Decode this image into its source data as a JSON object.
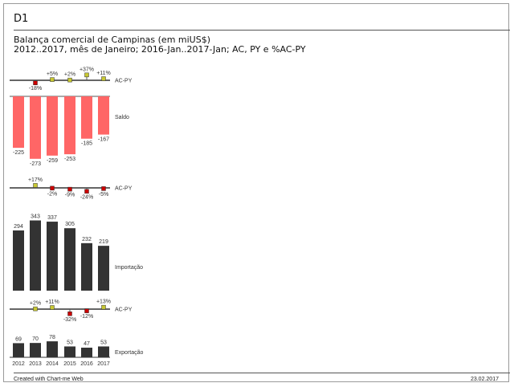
{
  "header": {
    "id_label": "D1",
    "title": "Balança comercial de Campinas (em miUS$)",
    "subtitle": "2012..2017, mês de Janeiro; 2016-Jan..2017-Jan; AC, PY e %AC-PY"
  },
  "footer": {
    "credit": "Created with Chart-me Web",
    "date": "23.02.2017"
  },
  "colors": {
    "saldo_bar": "#ff6666",
    "dark_bar": "#333333",
    "pos_marker": "#c8c832",
    "neg_marker": "#cc0000",
    "baseline": "#666666"
  },
  "chart_data": [
    {
      "type": "variance-pin",
      "name": "AC-PY",
      "categories": [
        "2012",
        "2013",
        "2014",
        "2015",
        "2016",
        "2017"
      ],
      "values": [
        null,
        -18,
        5,
        2,
        37,
        11
      ],
      "labels": [
        "",
        "-18%",
        "+5%",
        "+2%",
        "+37%",
        "+11%"
      ]
    },
    {
      "type": "bar",
      "name": "Saldo",
      "categories": [
        "2012",
        "2013",
        "2014",
        "2015",
        "2016",
        "2017"
      ],
      "values": [
        -225,
        -273,
        -259,
        -253,
        -185,
        -167
      ],
      "labels": [
        "-225",
        "-273",
        "-259",
        "-253",
        "-185",
        "-167"
      ]
    },
    {
      "type": "variance-pin",
      "name": "AC-PY",
      "categories": [
        "2012",
        "2013",
        "2014",
        "2015",
        "2016",
        "2017"
      ],
      "values": [
        null,
        17,
        -2,
        -9,
        -24,
        -5
      ],
      "labels": [
        "",
        "+17%",
        "-2%",
        "-9%",
        "-24%",
        "-5%"
      ]
    },
    {
      "type": "bar",
      "name": "Importação",
      "categories": [
        "2012",
        "2013",
        "2014",
        "2015",
        "2016",
        "2017"
      ],
      "values": [
        294,
        343,
        337,
        305,
        232,
        219
      ],
      "labels": [
        "294",
        "343",
        "337",
        "305",
        "232",
        "219"
      ]
    },
    {
      "type": "variance-pin",
      "name": "AC-PY",
      "categories": [
        "2012",
        "2013",
        "2014",
        "2015",
        "2016",
        "2017"
      ],
      "values": [
        null,
        2,
        11,
        -32,
        -12,
        13
      ],
      "labels": [
        "",
        "+2%",
        "+11%",
        "-32%",
        "-12%",
        "+13%"
      ]
    },
    {
      "type": "bar",
      "name": "Exportação",
      "categories": [
        "2012",
        "2013",
        "2014",
        "2015",
        "2016",
        "2017"
      ],
      "values": [
        69,
        70,
        78,
        53,
        47,
        53
      ],
      "labels": [
        "69",
        "70",
        "78",
        "53",
        "47",
        "53"
      ]
    }
  ]
}
